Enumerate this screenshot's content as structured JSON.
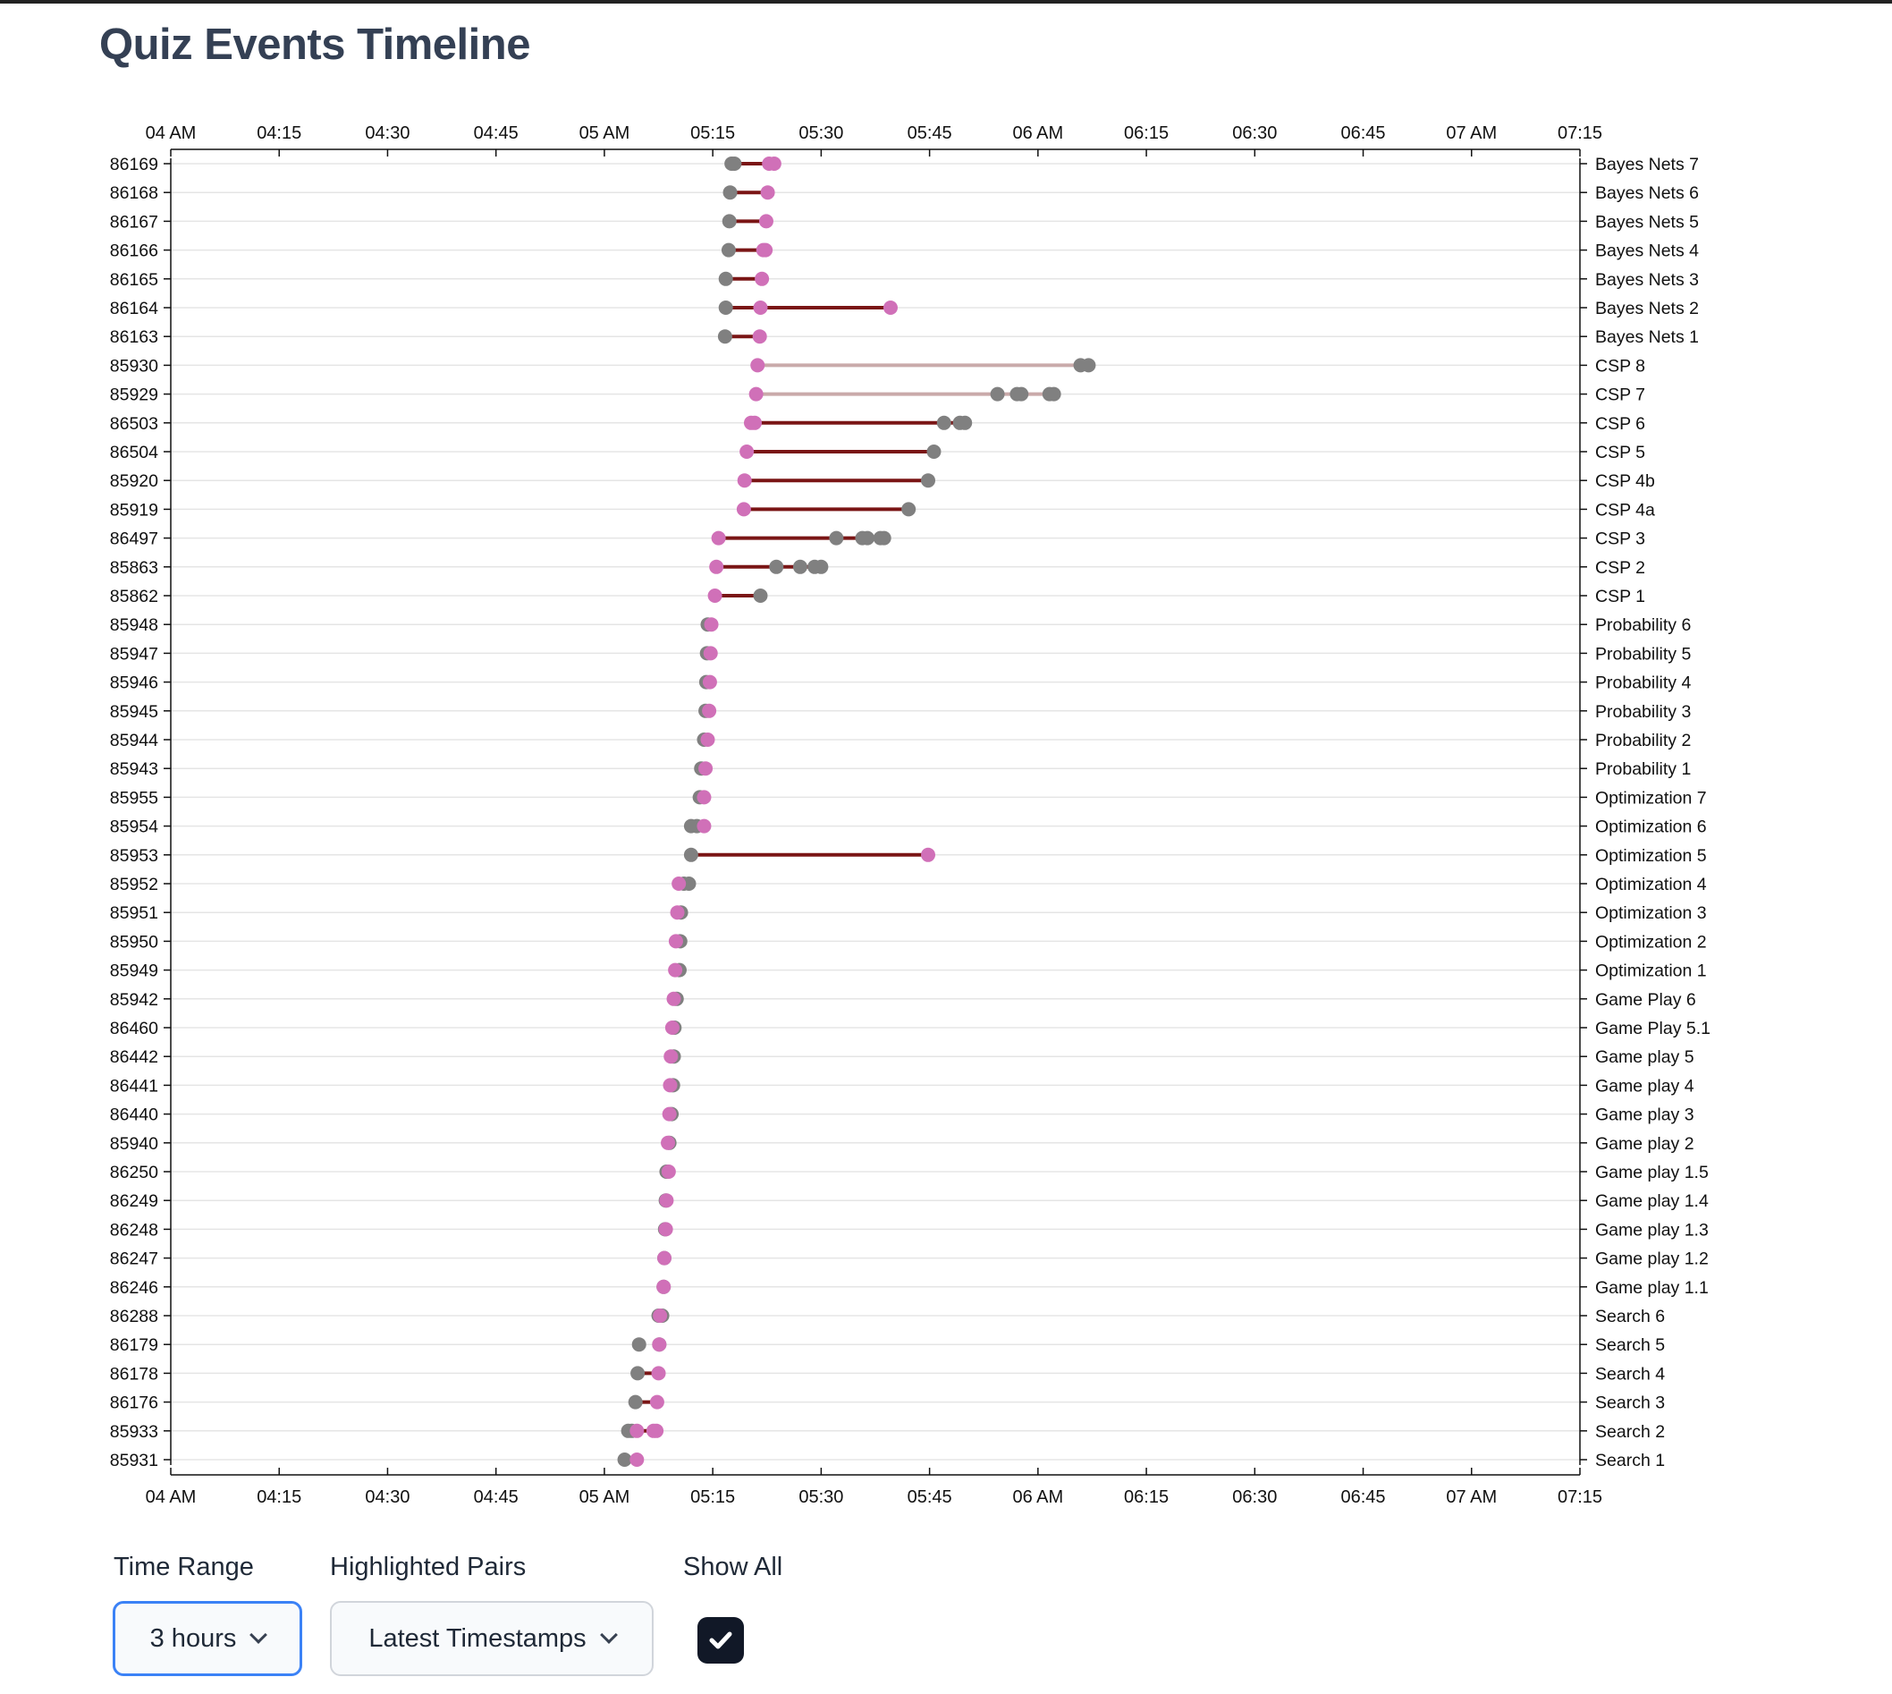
{
  "title": "Quiz Events Timeline",
  "colors": {
    "start_dot": "#808080",
    "end_dot": "#d070b8",
    "connector_strong": "#7a1515",
    "connector_faint": "#c9aaaa"
  },
  "controls": {
    "time_range": {
      "label": "Time Range",
      "value": "3 hours"
    },
    "highlighted_pairs": {
      "label": "Highlighted Pairs",
      "value": "Latest Timestamps"
    },
    "show_all": {
      "label": "Show All",
      "checked": true
    }
  },
  "chart_data": {
    "type": "timeline",
    "x_domain": [
      "04:00",
      "07:15"
    ],
    "x_ticks": [
      "04 AM",
      "04:15",
      "04:30",
      "04:45",
      "05 AM",
      "05:15",
      "05:30",
      "05:45",
      "06 AM",
      "06:15",
      "06:30",
      "06:45",
      "07 AM",
      "07:15"
    ],
    "grid": true,
    "rows": [
      {
        "id": "86169",
        "name": "Bayes Nets 7",
        "grey": [
          "05:17.6",
          "05:18.0"
        ],
        "pink": [
          "05:22.8",
          "05:23.5"
        ],
        "line": [
          "05:17.6",
          "05:23.5"
        ],
        "faint": false
      },
      {
        "id": "86168",
        "name": "Bayes Nets 6",
        "grey": [
          "05:17.4"
        ],
        "pink": [
          "05:22.6"
        ],
        "line": [
          "05:17.4",
          "05:22.6"
        ],
        "faint": false
      },
      {
        "id": "86167",
        "name": "Bayes Nets 5",
        "grey": [
          "05:17.3"
        ],
        "pink": [
          "05:22.4"
        ],
        "line": [
          "05:17.3",
          "05:22.4"
        ],
        "faint": false
      },
      {
        "id": "86166",
        "name": "Bayes Nets 4",
        "grey": [
          "05:17.2"
        ],
        "pink": [
          "05:22.0",
          "05:22.3"
        ],
        "line": [
          "05:17.2",
          "05:22.3"
        ],
        "faint": false
      },
      {
        "id": "86165",
        "name": "Bayes Nets 3",
        "grey": [
          "05:16.8"
        ],
        "pink": [
          "05:21.8"
        ],
        "line": [
          "05:16.8",
          "05:21.8"
        ],
        "faint": false
      },
      {
        "id": "86164",
        "name": "Bayes Nets 2",
        "grey": [
          "05:16.8"
        ],
        "pink": [
          "05:21.6",
          "05:39.6"
        ],
        "line": [
          "05:16.8",
          "05:39.6"
        ],
        "faint": false
      },
      {
        "id": "86163",
        "name": "Bayes Nets 1",
        "grey": [
          "05:16.7"
        ],
        "pink": [
          "05:21.5"
        ],
        "line": [
          "05:16.7",
          "05:21.5"
        ],
        "faint": false
      },
      {
        "id": "85930",
        "name": "CSP 8",
        "grey": [
          "06:05.9",
          "06:07.0"
        ],
        "pink": [
          "05:21.2"
        ],
        "line": [
          "05:21.2",
          "06:07.0"
        ],
        "faint": true
      },
      {
        "id": "85929",
        "name": "CSP 7",
        "grey": [
          "05:54.4",
          "05:57.1",
          "05:57.7",
          "06:01.6",
          "06:02.2"
        ],
        "pink": [
          "05:21.0"
        ],
        "line": [
          "05:21.0",
          "06:02.2"
        ],
        "faint": true
      },
      {
        "id": "86503",
        "name": "CSP 6",
        "grey": [
          "05:47.0",
          "05:49.2",
          "05:49.9"
        ],
        "pink": [
          "05:20.3",
          "05:20.8"
        ],
        "line": [
          "05:20.3",
          "05:49.9"
        ],
        "faint": false
      },
      {
        "id": "86504",
        "name": "CSP 5",
        "grey": [
          "05:45.6"
        ],
        "pink": [
          "05:19.7"
        ],
        "line": [
          "05:19.7",
          "05:45.6"
        ],
        "faint": false
      },
      {
        "id": "85920",
        "name": "CSP 4b",
        "grey": [
          "05:44.8"
        ],
        "pink": [
          "05:19.4"
        ],
        "line": [
          "05:19.4",
          "05:44.8"
        ],
        "faint": false
      },
      {
        "id": "85919",
        "name": "CSP 4a",
        "grey": [
          "05:42.1"
        ],
        "pink": [
          "05:19.3"
        ],
        "line": [
          "05:19.3",
          "05:42.1"
        ],
        "faint": false
      },
      {
        "id": "86497",
        "name": "CSP 3",
        "grey": [
          "05:32.1",
          "05:35.7",
          "05:36.4",
          "05:38.2",
          "05:38.7"
        ],
        "pink": [
          "05:15.8"
        ],
        "line": [
          "05:15.8",
          "05:38.7"
        ],
        "faint": false
      },
      {
        "id": "85863",
        "name": "CSP 2",
        "grey": [
          "05:23.8",
          "05:27.1",
          "05:29.1",
          "05:30.0"
        ],
        "pink": [
          "05:15.5"
        ],
        "line": [
          "05:15.5",
          "05:30.0"
        ],
        "faint": false
      },
      {
        "id": "85862",
        "name": "CSP 1",
        "grey": [
          "05:21.6"
        ],
        "pink": [
          "05:15.3"
        ],
        "line": [
          "05:15.3",
          "05:21.6"
        ],
        "faint": false
      },
      {
        "id": "85948",
        "name": "Probability 6",
        "grey": [
          "05:14.3"
        ],
        "pink": [
          "05:14.8"
        ],
        "line": null,
        "faint": false
      },
      {
        "id": "85947",
        "name": "Probability 5",
        "grey": [
          "05:14.2"
        ],
        "pink": [
          "05:14.7"
        ],
        "line": null,
        "faint": false
      },
      {
        "id": "85946",
        "name": "Probability 4",
        "grey": [
          "05:14.1"
        ],
        "pink": [
          "05:14.6"
        ],
        "line": null,
        "faint": false
      },
      {
        "id": "85945",
        "name": "Probability 3",
        "grey": [
          "05:14.0"
        ],
        "pink": [
          "05:14.5"
        ],
        "line": null,
        "faint": false
      },
      {
        "id": "85944",
        "name": "Probability 2",
        "grey": [
          "05:13.8"
        ],
        "pink": [
          "05:14.3"
        ],
        "line": null,
        "faint": false
      },
      {
        "id": "85943",
        "name": "Probability 1",
        "grey": [
          "05:13.4"
        ],
        "pink": [
          "05:14.0"
        ],
        "line": null,
        "faint": false
      },
      {
        "id": "85955",
        "name": "Optimization 7",
        "grey": [
          "05:13.2"
        ],
        "pink": [
          "05:13.8"
        ],
        "line": null,
        "faint": false
      },
      {
        "id": "85954",
        "name": "Optimization 6",
        "grey": [
          "05:12.0",
          "05:12.8"
        ],
        "pink": [
          "05:13.8"
        ],
        "line": null,
        "faint": false
      },
      {
        "id": "85953",
        "name": "Optimization 5",
        "grey": [
          "05:12.0"
        ],
        "pink": [
          "05:44.8"
        ],
        "line": [
          "05:12.0",
          "05:44.8"
        ],
        "faint": false
      },
      {
        "id": "85952",
        "name": "Optimization 4",
        "grey": [
          "05:11.0",
          "05:11.7"
        ],
        "pink": [
          "05:10.3"
        ],
        "line": null,
        "faint": false
      },
      {
        "id": "85951",
        "name": "Optimization 3",
        "grey": [
          "05:10.6"
        ],
        "pink": [
          "05:10.1"
        ],
        "line": null,
        "faint": false
      },
      {
        "id": "85950",
        "name": "Optimization 2",
        "grey": [
          "05:10.5"
        ],
        "pink": [
          "05:09.9"
        ],
        "line": null,
        "faint": false
      },
      {
        "id": "85949",
        "name": "Optimization 1",
        "grey": [
          "05:10.4"
        ],
        "pink": [
          "05:09.8"
        ],
        "line": null,
        "faint": false
      },
      {
        "id": "85942",
        "name": "Game Play 6",
        "grey": [
          "05:10.0"
        ],
        "pink": [
          "05:09.6"
        ],
        "line": null,
        "faint": false
      },
      {
        "id": "86460",
        "name": "Game Play 5.1",
        "grey": [
          "05:09.7"
        ],
        "pink": [
          "05:09.4"
        ],
        "line": null,
        "faint": false
      },
      {
        "id": "86442",
        "name": "Game play 5",
        "grey": [
          "05:09.6"
        ],
        "pink": [
          "05:09.2"
        ],
        "line": null,
        "faint": false
      },
      {
        "id": "86441",
        "name": "Game play 4",
        "grey": [
          "05:09.5"
        ],
        "pink": [
          "05:09.1"
        ],
        "line": null,
        "faint": false
      },
      {
        "id": "86440",
        "name": "Game play 3",
        "grey": [
          "05:09.3"
        ],
        "pink": [
          "05:09.0"
        ],
        "line": null,
        "faint": false
      },
      {
        "id": "85940",
        "name": "Game play 2",
        "grey": [
          "05:09.0"
        ],
        "pink": [
          "05:08.8"
        ],
        "line": null,
        "faint": false
      },
      {
        "id": "86250",
        "name": "Game play 1.5",
        "grey": [
          "05:08.6"
        ],
        "pink": [
          "05:08.9"
        ],
        "line": null,
        "faint": false
      },
      {
        "id": "86249",
        "name": "Game play 1.4",
        "grey": [
          "05:08.5"
        ],
        "pink": [
          "05:08.6"
        ],
        "line": null,
        "faint": false
      },
      {
        "id": "86248",
        "name": "Game play 1.3",
        "grey": [
          "05:08.4"
        ],
        "pink": [
          "05:08.5"
        ],
        "line": null,
        "faint": false
      },
      {
        "id": "86247",
        "name": "Game play 1.2",
        "grey": [
          "05:08.3"
        ],
        "pink": [
          "05:08.3"
        ],
        "line": null,
        "faint": false
      },
      {
        "id": "86246",
        "name": "Game play 1.1",
        "grey": [
          "05:08.2"
        ],
        "pink": [
          "05:08.2"
        ],
        "line": null,
        "faint": false
      },
      {
        "id": "86288",
        "name": "Search 6",
        "grey": [
          "05:07.5",
          "05:08.0"
        ],
        "pink": [
          "05:07.7"
        ],
        "line": null,
        "faint": false
      },
      {
        "id": "86179",
        "name": "Search 5",
        "grey": [
          "05:04.8",
          "05:07.6"
        ],
        "pink": [
          "05:07.6"
        ],
        "line": null,
        "faint": false
      },
      {
        "id": "86178",
        "name": "Search 4",
        "grey": [
          "05:04.6"
        ],
        "pink": [
          "05:07.5"
        ],
        "line": [
          "05:04.6",
          "05:07.5"
        ],
        "faint": false
      },
      {
        "id": "86176",
        "name": "Search 3",
        "grey": [
          "05:04.3"
        ],
        "pink": [
          "05:07.3"
        ],
        "line": [
          "05:04.3",
          "05:07.3"
        ],
        "faint": false
      },
      {
        "id": "85933",
        "name": "Search 2",
        "grey": [
          "05:03.3",
          "05:03.8"
        ],
        "pink": [
          "05:04.5",
          "05:06.8",
          "05:07.2"
        ],
        "line": [
          "05:03.3",
          "05:07.2"
        ],
        "faint": false
      },
      {
        "id": "85931",
        "name": "Search 1",
        "grey": [
          "05:02.8"
        ],
        "pink": [
          "05:04.5"
        ],
        "line": [
          "05:02.8",
          "05:04.5"
        ],
        "faint": false
      }
    ]
  }
}
